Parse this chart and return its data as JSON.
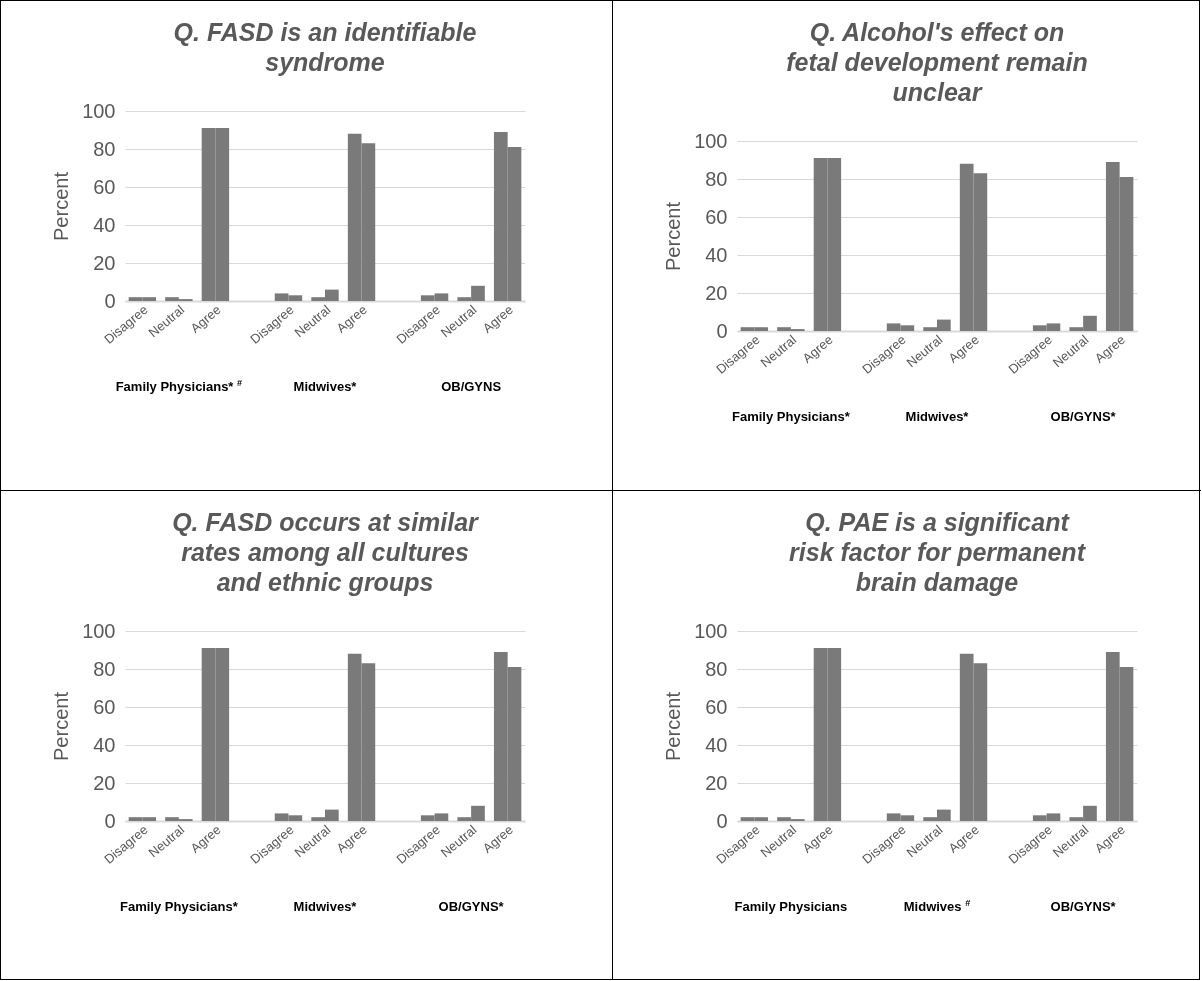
{
  "chart_data": [
    {
      "type": "bar",
      "title": "Q. FASD is an identifiable syndrome",
      "ylabel": "Percent",
      "categories": [
        "Disagree",
        "Neutral",
        "Agree",
        null,
        "Disagree",
        "Neutral",
        "Agree",
        null,
        "Disagree",
        "Neutral",
        "Agree"
      ],
      "series": [
        {
          "color": "#7a7a7a",
          "values": [
            2,
            2,
            91,
            null,
            4,
            2,
            88,
            null,
            3,
            2,
            89
          ]
        },
        {
          "color": "#7a7a7a",
          "values": [
            2,
            1,
            91,
            null,
            3,
            6,
            83,
            null,
            4,
            8,
            81
          ]
        }
      ],
      "ylim": [
        0,
        100
      ],
      "yticks": [
        0,
        20,
        40,
        60,
        80,
        100
      ],
      "grid": "y",
      "annotations": [
        "Family Physicians* $^{#}$",
        "Midwives*",
        "OB/GYNS"
      ]
    },
    {
      "type": "bar",
      "title": "Q. Alcohol's effect on fetal development remain unclear",
      "ylabel": "Percent",
      "categories": [
        "Disagree",
        "Neutral",
        "Agree",
        null,
        "Disagree",
        "Neutral",
        "Agree",
        null,
        "Disagree",
        "Neutral",
        "Agree"
      ],
      "series": [
        {
          "color": "#7a7a7a",
          "values": [
            2,
            2,
            91,
            null,
            4,
            2,
            88,
            null,
            3,
            2,
            89
          ]
        },
        {
          "color": "#7a7a7a",
          "values": [
            2,
            1,
            91,
            null,
            3,
            6,
            83,
            null,
            4,
            8,
            81
          ]
        }
      ],
      "ylim": [
        0,
        100
      ],
      "yticks": [
        0,
        20,
        40,
        60,
        80,
        100
      ],
      "grid": "y",
      "annotations": [
        "Family Physicians*",
        "Midwives*",
        "OB/GYNS*"
      ]
    },
    {
      "type": "bar",
      "title": "Q. FASD occurs at similar rates among all cultures and ethnic groups",
      "ylabel": "Percent",
      "categories": [
        "Disagree",
        "Neutral",
        "Agree",
        null,
        "Disagree",
        "Neutral",
        "Agree",
        null,
        "Disagree",
        "Neutral",
        "Agree"
      ],
      "series": [
        {
          "color": "#7a7a7a",
          "values": [
            2,
            2,
            91,
            null,
            4,
            2,
            88,
            null,
            3,
            2,
            89
          ]
        },
        {
          "color": "#7a7a7a",
          "values": [
            2,
            1,
            91,
            null,
            3,
            6,
            83,
            null,
            4,
            8,
            81
          ]
        }
      ],
      "ylim": [
        0,
        100
      ],
      "yticks": [
        0,
        20,
        40,
        60,
        80,
        100
      ],
      "grid": "y",
      "annotations": [
        "Family Physicians*",
        "Midwives*",
        "OB/GYNS*"
      ]
    },
    {
      "type": "bar",
      "title": "Q. PAE is a significant risk factor for permanent brain damage",
      "ylabel": "Percent",
      "categories": [
        "Disagree",
        "Neutral",
        "Agree",
        null,
        "Disagree",
        "Neutral",
        "Agree",
        null,
        "Disagree",
        "Neutral",
        "Agree"
      ],
      "series": [
        {
          "color": "#7a7a7a",
          "values": [
            2,
            2,
            91,
            null,
            4,
            2,
            88,
            null,
            3,
            2,
            89
          ]
        },
        {
          "color": "#7a7a7a",
          "values": [
            2,
            1,
            91,
            null,
            3,
            6,
            83,
            null,
            4,
            8,
            81
          ]
        }
      ],
      "ylim": [
        0,
        100
      ],
      "yticks": [
        0,
        20,
        40,
        60,
        80,
        100
      ],
      "grid": "y",
      "annotations": [
        "Family Physicians",
        "Midwives $^{#}$",
        "OB/GYNS*"
      ]
    }
  ]
}
